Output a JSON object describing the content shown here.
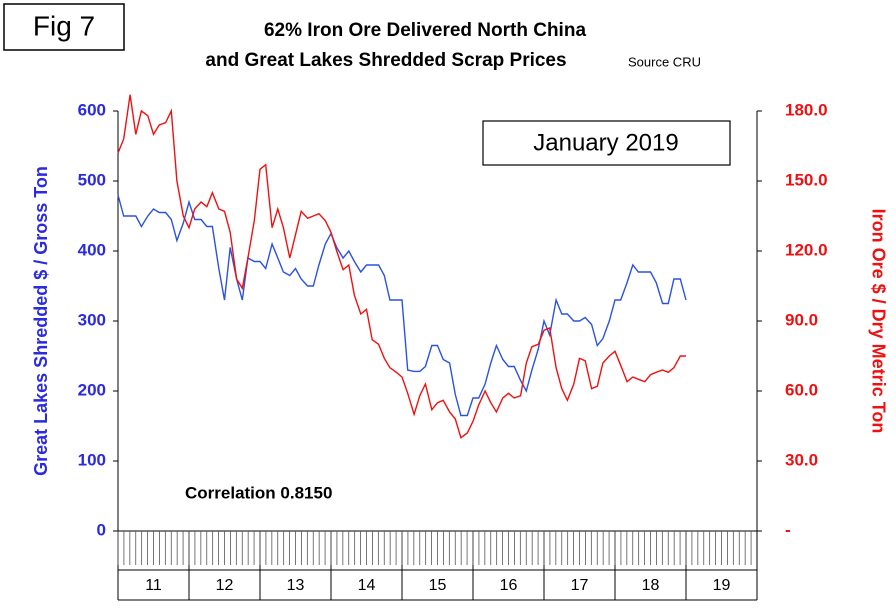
{
  "chart_data": {
    "type": "line",
    "fig_label": "Fig 7",
    "title": [
      "62% Iron Ore Delivered North China",
      "and Great Lakes Shredded Scrap Prices"
    ],
    "source": "Source CRU",
    "annotation": "January 2019",
    "correlation": "Correlation 0.8150",
    "ylabel": "Great Lakes Shredded $ / Gross Ton",
    "y2label": "Iron Ore $ / Dry Metric Ton",
    "categories": [
      "11",
      "12",
      "13",
      "14",
      "15",
      "16",
      "17",
      "18",
      "19"
    ],
    "xlim": [
      11,
      20
    ],
    "xticks": [
      11,
      12,
      13,
      14,
      15,
      16,
      17,
      18,
      19,
      20
    ],
    "ylim": [
      0,
      600
    ],
    "yticks": [
      0,
      100,
      200,
      300,
      400,
      500,
      600
    ],
    "y2lim": [
      0,
      180
    ],
    "y2ticks": [
      {
        "value": 0,
        "label": "-"
      },
      {
        "value": 30,
        "label": "30.0"
      },
      {
        "value": 60,
        "label": "60.0"
      },
      {
        "value": 90,
        "label": "90.0"
      },
      {
        "value": 120,
        "label": "120.0"
      },
      {
        "value": 150,
        "label": "150.0"
      },
      {
        "value": 180,
        "label": "180.0"
      }
    ],
    "x": [
      11,
      11.08,
      11.17,
      11.25,
      11.33,
      11.42,
      11.5,
      11.58,
      11.67,
      11.75,
      11.83,
      11.92,
      12,
      12.08,
      12.17,
      12.25,
      12.33,
      12.42,
      12.5,
      12.58,
      12.67,
      12.75,
      12.83,
      12.92,
      13,
      13.08,
      13.17,
      13.25,
      13.33,
      13.42,
      13.5,
      13.58,
      13.67,
      13.75,
      13.83,
      13.92,
      14,
      14.08,
      14.17,
      14.25,
      14.33,
      14.42,
      14.5,
      14.58,
      14.67,
      14.75,
      14.83,
      14.92,
      15,
      15.08,
      15.17,
      15.25,
      15.33,
      15.42,
      15.5,
      15.58,
      15.67,
      15.75,
      15.83,
      15.92,
      16,
      16.08,
      16.17,
      16.25,
      16.33,
      16.42,
      16.5,
      16.58,
      16.67,
      16.75,
      16.83,
      16.92,
      17,
      17.08,
      17.17,
      17.25,
      17.33,
      17.42,
      17.5,
      17.58,
      17.67,
      17.75,
      17.83,
      17.92,
      18,
      18.08,
      18.17,
      18.25,
      18.33,
      18.42,
      18.5,
      18.58,
      18.67,
      18.75,
      18.83,
      18.92,
      19
    ],
    "series": [
      {
        "color": "#2a52e0",
        "values": [
          480,
          450,
          450,
          450,
          435,
          450,
          460,
          455,
          455,
          445,
          415,
          440,
          470,
          445,
          445,
          435,
          435,
          375,
          330,
          405,
          360,
          330,
          390,
          385,
          385,
          375,
          410,
          390,
          370,
          365,
          375,
          360,
          350,
          350,
          380,
          410,
          425,
          405,
          390,
          400,
          385,
          370,
          380,
          380,
          380,
          365,
          330,
          330,
          330,
          230,
          228,
          228,
          235,
          265,
          265,
          245,
          240,
          195,
          165,
          165,
          190,
          190,
          210,
          240,
          265,
          245,
          235,
          235,
          215,
          200,
          230,
          260,
          300,
          280,
          330,
          310,
          310,
          300,
          300,
          305,
          295,
          265,
          275,
          300,
          330,
          330,
          355,
          380,
          370,
          370,
          370,
          355,
          325,
          325,
          360,
          360,
          330
        ]
      },
      {
        "color": "#ee1111",
        "axis": "y2",
        "values": [
          162,
          168,
          187,
          170,
          180,
          178,
          170,
          174,
          175,
          180,
          150,
          135,
          130,
          138,
          141,
          139,
          145,
          138,
          137,
          128,
          108,
          104,
          117,
          133,
          155,
          157,
          130,
          138,
          130,
          117,
          127,
          137,
          134,
          135,
          136,
          133,
          128,
          120,
          112,
          114,
          101,
          93,
          95,
          82,
          80,
          74,
          70,
          68,
          66,
          59,
          50,
          58,
          63,
          52,
          55,
          56,
          51,
          48,
          40,
          42,
          47,
          54,
          60,
          55,
          51,
          57,
          59,
          57,
          58,
          72,
          79,
          80,
          86,
          87,
          70,
          61,
          56,
          63,
          74,
          73,
          61,
          62,
          72,
          75,
          77,
          71,
          64,
          66,
          65,
          64,
          67,
          68,
          69,
          68,
          70,
          75,
          75
        ]
      }
    ]
  }
}
